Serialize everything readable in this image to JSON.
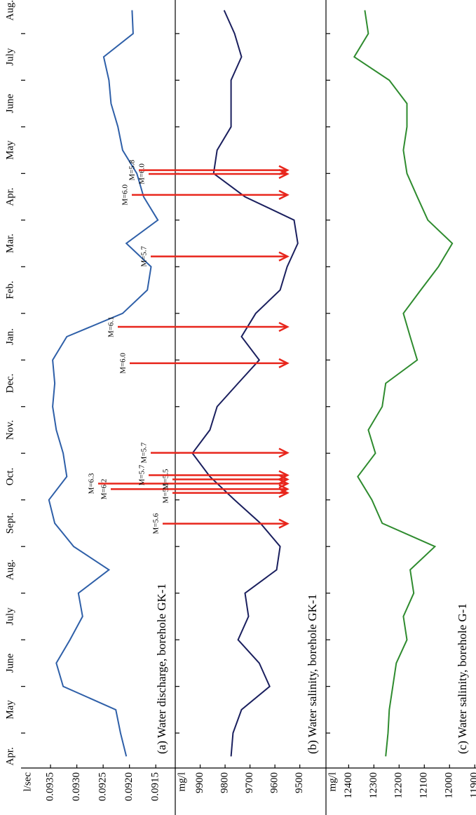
{
  "chart_data": [
    {
      "type": "line",
      "title": "(a) Water discharge, borehole GK-1",
      "ylabel": "l/sec",
      "xlim": [
        0.25,
        16.72
      ],
      "xticks": [
        {
          "value": 0.5,
          "label": "Apr."
        },
        {
          "value": 1.5,
          "label": "May"
        },
        {
          "value": 2.5,
          "label": "June"
        },
        {
          "value": 3.5,
          "label": "July"
        },
        {
          "value": 4.5,
          "label": "Aug."
        },
        {
          "value": 5.5,
          "label": "Sept."
        },
        {
          "value": 6.5,
          "label": "Oct."
        },
        {
          "value": 7.5,
          "label": "Nov."
        },
        {
          "value": 8.5,
          "label": "Dec."
        },
        {
          "value": 9.5,
          "label": "Jan."
        },
        {
          "value": 10.5,
          "label": "Feb."
        },
        {
          "value": 11.5,
          "label": "Mar."
        },
        {
          "value": 12.5,
          "label": "Apr."
        },
        {
          "value": 13.5,
          "label": "May"
        },
        {
          "value": 14.5,
          "label": "June"
        },
        {
          "value": 15.5,
          "label": "July"
        },
        {
          "value": 16.5,
          "label": "Aug."
        }
      ],
      "ylim": [
        0.09113,
        0.09406
      ],
      "yticks": [
        0.0935,
        {
          "value": 0.093,
          "label": "0.0930"
        },
        0.0925,
        {
          "value": 0.092,
          "label": "0.0920"
        },
        0.0915
      ],
      "x": [
        0.5,
        1,
        1.5,
        2,
        2.5,
        3,
        3.5,
        4,
        4.5,
        5,
        5.5,
        6,
        6.5,
        7,
        7.5,
        8,
        8.5,
        9,
        9.5,
        10,
        10.5,
        11,
        11.5,
        12,
        12.5,
        13,
        13.5,
        14,
        14.5,
        15,
        15.5,
        16,
        16.5
      ],
      "series": [
        {
          "color": "#2e5fa8",
          "values": [
            0.09206,
            0.09217,
            0.09226,
            0.09326,
            0.09339,
            0.09313,
            0.09289,
            0.09297,
            0.09239,
            0.09306,
            0.09342,
            0.09353,
            0.09319,
            0.09326,
            0.09339,
            0.09346,
            0.09342,
            0.09346,
            0.09319,
            0.09213,
            0.09166,
            0.09159,
            0.09206,
            0.09146,
            0.09173,
            0.09186,
            0.09213,
            0.09222,
            0.09235,
            0.09239,
            0.09249,
            0.09193,
            0.09195
          ]
        }
      ],
      "annotations": {
        "color": "#e8261c",
        "events": [
          {
            "x": 5.49,
            "label": "M=5.6"
          },
          {
            "x": 6.15,
            "label": "M=5.5"
          },
          {
            "x": 6.23,
            "label": "M=6.2"
          },
          {
            "x": 6.35,
            "label": "M=6.3"
          },
          {
            "x": 6.44,
            "label": "M=5.5"
          },
          {
            "x": 6.53,
            "label": "M=5.7"
          },
          {
            "x": 7.01,
            "label": "M=5.7"
          },
          {
            "x": 8.93,
            "label": "M=6.0"
          },
          {
            "x": 9.71,
            "label": "M=6.1"
          },
          {
            "x": 11.22,
            "label": "M=5.7"
          },
          {
            "x": 12.54,
            "label": "M=6.0"
          },
          {
            "x": 12.99,
            "label": "M=6.0"
          },
          {
            "x": 13.07,
            "label": "M=5.8"
          }
        ]
      }
    },
    {
      "type": "line",
      "title": "(b) Water salinity, borehole GK-1",
      "ylabel": "mg/l",
      "ylim": [
        9395,
        10000
      ],
      "yticks": [
        9900,
        9800,
        9700,
        9600,
        9500
      ],
      "x": [
        0.5,
        1,
        1.5,
        2,
        2.5,
        3,
        3.5,
        4,
        4.5,
        5,
        5.5,
        6,
        6.5,
        7,
        7.5,
        8,
        8.5,
        9,
        9.5,
        10,
        10.5,
        11,
        11.5,
        12,
        12.5,
        13,
        13.5,
        14,
        14.5,
        15,
        15.5,
        16,
        16.5
      ],
      "series": [
        {
          "color": "#1a1f5e",
          "values": [
            9776,
            9768,
            9734,
            9621,
            9663,
            9748,
            9706,
            9720,
            9593,
            9579,
            9658,
            9762,
            9861,
            9931,
            9861,
            9832,
            9748,
            9663,
            9734,
            9677,
            9579,
            9551,
            9508,
            9523,
            9720,
            9846,
            9832,
            9776,
            9776,
            9776,
            9734,
            9762,
            9804
          ]
        }
      ]
    },
    {
      "type": "line",
      "title": "(c) Water salinity, borehole G-1",
      "ylabel": "mg/l",
      "ylim": [
        11895,
        12490
      ],
      "yticks": [
        12400,
        12300,
        12200,
        12100,
        12000,
        11900
      ],
      "x": [
        0.5,
        1,
        1.5,
        2,
        2.5,
        3,
        3.5,
        4,
        4.5,
        5,
        5.5,
        6,
        6.5,
        7,
        7.5,
        8,
        8.5,
        9,
        9.5,
        10,
        10.5,
        11,
        11.5,
        12,
        12.5,
        13,
        13.5,
        14,
        14.5,
        15,
        15.5,
        16,
        16.5
      ],
      "series": [
        {
          "color": "#2e8b2e",
          "values": [
            12253,
            12244,
            12239,
            12225,
            12211,
            12169,
            12183,
            12142,
            12156,
            12058,
            12267,
            12308,
            12364,
            12294,
            12322,
            12267,
            12253,
            12128,
            12156,
            12183,
            12114,
            12044,
            11989,
            12086,
            12128,
            12169,
            12183,
            12169,
            12169,
            12239,
            12378,
            12322,
            12336
          ]
        }
      ]
    }
  ]
}
